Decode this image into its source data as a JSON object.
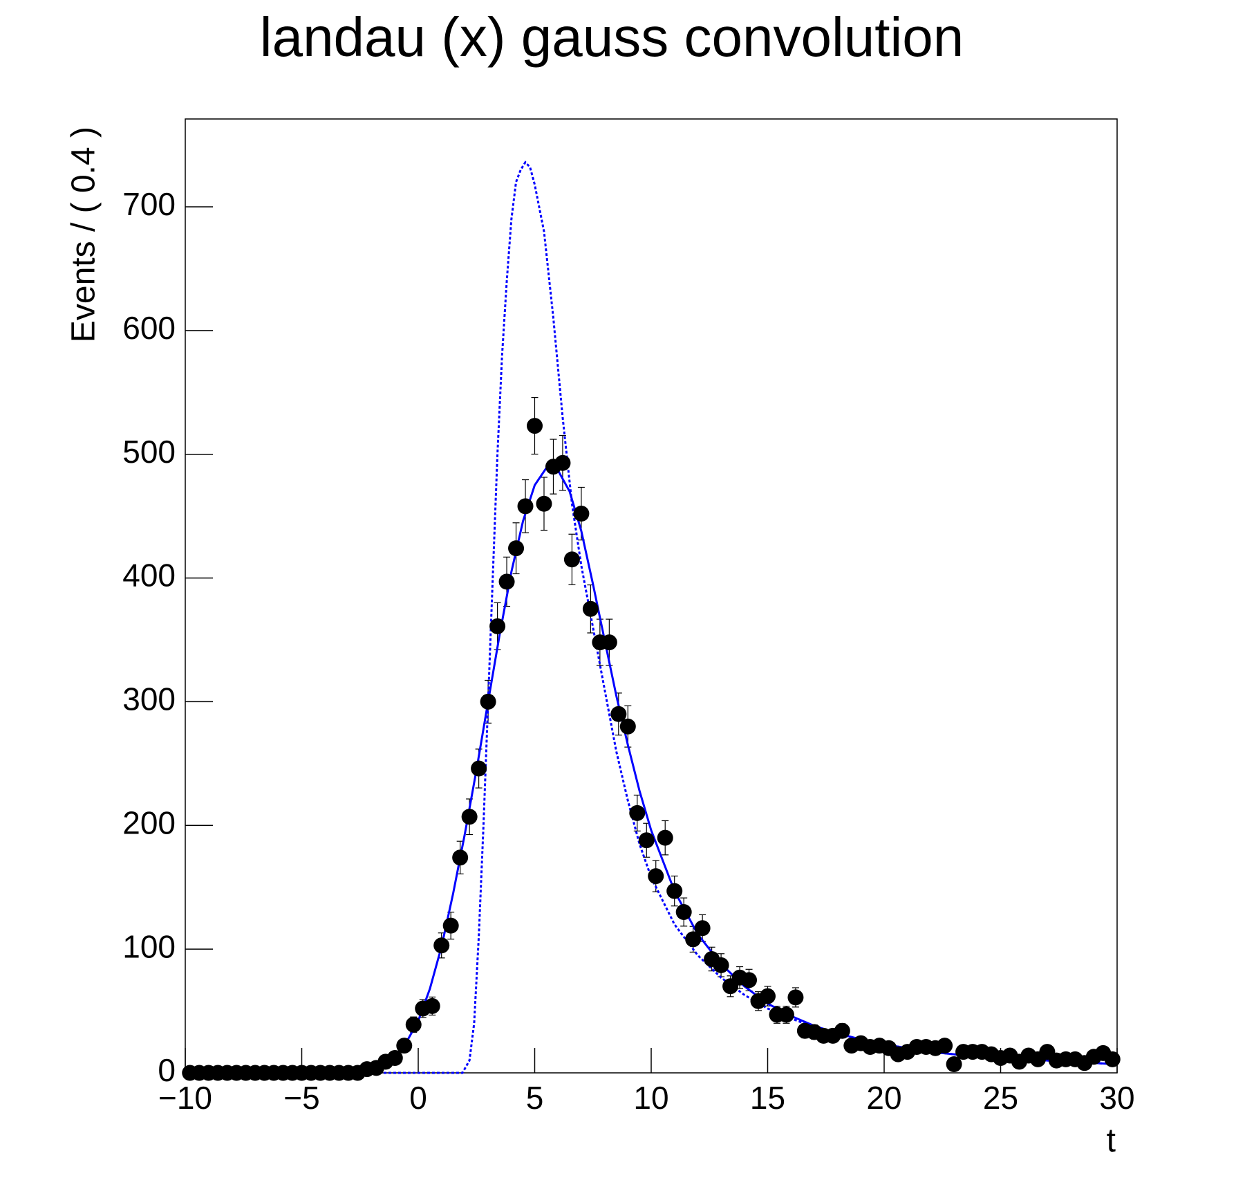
{
  "chart_data": {
    "type": "errorbar",
    "title": "landau (x) gauss convolution",
    "xlabel": "t",
    "ylabel": "Events / ( 0.4 )",
    "xlim": [
      -10,
      30
    ],
    "ylim": [
      0,
      771
    ],
    "xticks": [
      {
        "value": -10,
        "label": "−10"
      },
      {
        "value": -5,
        "label": "−5"
      },
      0,
      5,
      10,
      15,
      20,
      25,
      30
    ],
    "yticks": [
      0,
      100,
      200,
      300,
      400,
      500,
      600,
      700
    ],
    "grid": false,
    "points": {
      "color": "#000000",
      "x": [
        -9.8,
        -9.4,
        -9,
        -8.6,
        -8.2,
        -7.8,
        -7.4,
        -7,
        -6.6,
        -6.2,
        -5.8,
        -5.4,
        -5,
        -4.6,
        -4.2,
        -3.8,
        -3.4,
        -3,
        -2.6,
        -2.2,
        -1.8,
        -1.4,
        -1,
        -0.6,
        -0.2,
        0.2,
        0.6,
        1,
        1.4,
        1.8,
        2.2,
        2.6,
        3,
        3.4,
        3.8,
        4.2,
        4.6,
        5,
        5.4,
        5.8,
        6.2,
        6.6,
        7,
        7.4,
        7.8,
        8.2,
        8.6,
        9,
        9.4,
        9.8,
        10.2,
        10.6,
        11,
        11.4,
        11.8,
        12.2,
        12.6,
        13,
        13.4,
        13.8,
        14.2,
        14.6,
        15,
        15.4,
        15.8,
        16.2,
        16.6,
        17,
        17.4,
        17.8,
        18.2,
        18.6,
        19,
        19.4,
        19.8,
        20.2,
        20.6,
        21,
        21.4,
        21.8,
        22.2,
        22.6,
        23,
        23.4,
        23.8,
        24.2,
        24.6,
        25,
        25.4,
        25.8,
        26.2,
        26.6,
        27,
        27.4,
        27.8,
        28.2,
        28.6,
        29,
        29.4,
        29.8
      ],
      "values": [
        0,
        0,
        0,
        0,
        0,
        0,
        0,
        0,
        0,
        0,
        0,
        0,
        0,
        0,
        0,
        0,
        0,
        0,
        0,
        3,
        4,
        9,
        12,
        22,
        39,
        52,
        54,
        103,
        119,
        174,
        207,
        246,
        300,
        361,
        397,
        424,
        458,
        523,
        460,
        490,
        493,
        415,
        452,
        375,
        348,
        348,
        290,
        280,
        210,
        188,
        159,
        190,
        147,
        130,
        108,
        117,
        92,
        87,
        70,
        77,
        75,
        58,
        62,
        47,
        47,
        61,
        34,
        33,
        30,
        30,
        34,
        22,
        24,
        21,
        22,
        20,
        15,
        17,
        21,
        21,
        20,
        22,
        7,
        17,
        17,
        17,
        15,
        12,
        14,
        9,
        14,
        11,
        17,
        10,
        11,
        11,
        8,
        13,
        16,
        11
      ],
      "errors": [
        0,
        0,
        0,
        0,
        0,
        0,
        0,
        0,
        0,
        0,
        0,
        0,
        0,
        0,
        0,
        0,
        0,
        0,
        0,
        1.7,
        2.0,
        3.0,
        3.5,
        4.7,
        6.2,
        7.2,
        7.3,
        10.1,
        10.9,
        13.2,
        14.4,
        15.7,
        17.3,
        19.0,
        19.9,
        20.6,
        21.4,
        22.9,
        21.4,
        22.1,
        22.2,
        20.4,
        21.3,
        19.4,
        18.7,
        18.7,
        17.0,
        16.7,
        14.5,
        13.7,
        12.6,
        13.8,
        12.1,
        11.4,
        10.4,
        10.8,
        9.6,
        9.3,
        8.4,
        8.8,
        8.7,
        7.6,
        7.9,
        6.9,
        6.9,
        7.8,
        5.8,
        5.7,
        5.5,
        5.5,
        5.8,
        4.7,
        4.9,
        4.6,
        4.7,
        4.5,
        3.9,
        4.1,
        4.6,
        4.6,
        4.5,
        4.7,
        2.6,
        4.1,
        4.1,
        4.1,
        3.9,
        3.5,
        3.7,
        3.0,
        3.7,
        3.3,
        4.1,
        3.2,
        3.3,
        3.3,
        2.8,
        3.6,
        4.0,
        3.3
      ]
    },
    "curves": [
      {
        "color": "#0000ff",
        "dash": "solid",
        "x": [
          -10,
          -4,
          -3,
          -2,
          -1.5,
          -1,
          -0.5,
          0,
          0.5,
          1,
          1.5,
          2,
          2.5,
          3,
          3.5,
          4,
          4.5,
          5,
          5.5,
          6,
          6.5,
          7,
          7.5,
          8,
          8.5,
          9,
          9.5,
          10,
          11,
          12,
          13,
          14,
          15,
          16,
          17,
          18,
          19,
          20,
          22,
          24,
          26,
          28,
          30
        ],
        "values": [
          0,
          0.2,
          1,
          3,
          7,
          13,
          25,
          42,
          68,
          102,
          145,
          193,
          245,
          300,
          355,
          405,
          446,
          475,
          489,
          487,
          470,
          438,
          395,
          350,
          305,
          265,
          228,
          196,
          147,
          112,
          88,
          70,
          56,
          46,
          38,
          32,
          27,
          23,
          17,
          13,
          11,
          9,
          7
        ]
      },
      {
        "color": "#0000ff",
        "dash": "dotted",
        "x": [
          -10,
          1.9,
          2.2,
          2.4,
          2.6,
          2.8,
          3.0,
          3.2,
          3.4,
          3.6,
          3.8,
          4.0,
          4.2,
          4.4,
          4.6,
          4.8,
          5.0,
          5.4,
          5.8,
          6.2,
          6.6,
          7.0,
          7.5,
          8,
          8.5,
          9,
          9.5,
          10,
          11,
          12,
          13,
          14,
          15,
          16,
          17,
          18,
          20,
          22,
          24,
          26,
          28,
          30
        ],
        "values": [
          0,
          0,
          10,
          40,
          110,
          200,
          300,
          400,
          500,
          580,
          640,
          690,
          720,
          730,
          736,
          732,
          718,
          680,
          610,
          530,
          460,
          410,
          360,
          310,
          260,
          220,
          185,
          158,
          120,
          95,
          77,
          63,
          52,
          44,
          37,
          31,
          23,
          17,
          13,
          11,
          9,
          7
        ]
      }
    ]
  }
}
